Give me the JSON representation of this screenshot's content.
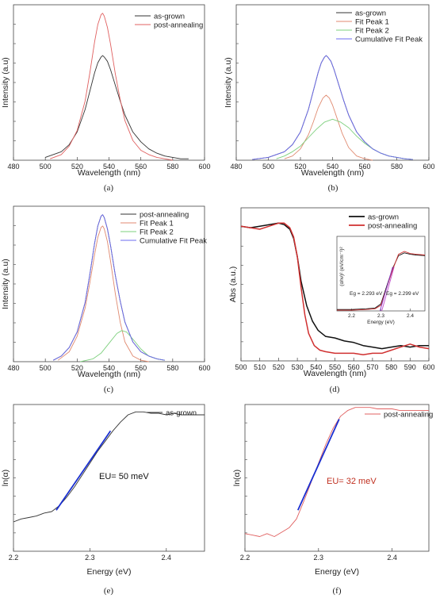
{
  "colors": {
    "as_grown": "#333333",
    "post_annealing": "#e06060",
    "fit1": "#e08a70",
    "fit2": "#7ed07e",
    "cumulative": "#6c6cf0",
    "abs_as_grown": "#111111",
    "abs_post": "#d03030",
    "urbach_fit": "#1a2fd0",
    "annot_red": "#c03020"
  },
  "chart_data": [
    {
      "id": "a",
      "type": "line",
      "panel_label": "(a)",
      "xlabel": "Wavelength (nm)",
      "ylabel": "Intensity (a.u)",
      "xlim": [
        480,
        600
      ],
      "ylim": [
        0,
        1.1
      ],
      "xticks": [
        480,
        500,
        520,
        540,
        560,
        580,
        600
      ],
      "tick_labels": [
        "480",
        "500",
        "520",
        "540",
        "560",
        "580",
        "600"
      ],
      "legend": "top-right",
      "series": [
        {
          "name": "as-grown",
          "color": "as_grown",
          "x": [
            500,
            510,
            515,
            520,
            525,
            528,
            531,
            533,
            535,
            536,
            537,
            539,
            541,
            544,
            547,
            550,
            555,
            560,
            565,
            570,
            575,
            580,
            585,
            590
          ],
          "y": [
            0.02,
            0.06,
            0.11,
            0.2,
            0.36,
            0.49,
            0.62,
            0.69,
            0.73,
            0.74,
            0.73,
            0.7,
            0.64,
            0.53,
            0.42,
            0.32,
            0.2,
            0.13,
            0.08,
            0.05,
            0.03,
            0.02,
            0.01,
            0.01
          ]
        },
        {
          "name": "post-annealing",
          "color": "post_annealing",
          "x": [
            503,
            510,
            515,
            520,
            525,
            528,
            531,
            533,
            535,
            536,
            537,
            539,
            541,
            544,
            547,
            550,
            555,
            560,
            565,
            570,
            575,
            580
          ],
          "y": [
            0.01,
            0.04,
            0.1,
            0.21,
            0.42,
            0.62,
            0.84,
            0.96,
            1.03,
            1.04,
            1.02,
            0.94,
            0.82,
            0.61,
            0.43,
            0.28,
            0.14,
            0.07,
            0.04,
            0.02,
            0.01,
            0.0
          ]
        }
      ]
    },
    {
      "id": "b",
      "type": "line",
      "panel_label": "(b)",
      "xlabel": "Wavelength (nm)",
      "ylabel": "Intensity (a.u)",
      "xlim": [
        480,
        600
      ],
      "ylim": [
        0,
        1.1
      ],
      "xticks": [
        480,
        500,
        520,
        540,
        560,
        580,
        600
      ],
      "tick_labels": [
        "480",
        "500",
        "520",
        "540",
        "560",
        "580",
        "600"
      ],
      "legend": "top-right",
      "series": [
        {
          "name": "as-grown",
          "color": "as_grown",
          "x": [
            490,
            500,
            510,
            515,
            520,
            525,
            528,
            531,
            533,
            535,
            536,
            537,
            539,
            541,
            544,
            547,
            550,
            555,
            560,
            565,
            570,
            575,
            580,
            585,
            590
          ],
          "y": [
            0.005,
            0.02,
            0.06,
            0.11,
            0.2,
            0.36,
            0.49,
            0.62,
            0.69,
            0.73,
            0.74,
            0.73,
            0.7,
            0.64,
            0.53,
            0.42,
            0.32,
            0.2,
            0.13,
            0.08,
            0.05,
            0.03,
            0.02,
            0.01,
            0.005
          ]
        },
        {
          "name": "Fit Peak 1",
          "color": "fit1",
          "x": [
            510,
            515,
            520,
            525,
            528,
            531,
            534,
            536,
            538,
            540,
            543,
            546,
            550,
            555,
            560,
            565
          ],
          "y": [
            0.01,
            0.03,
            0.08,
            0.18,
            0.27,
            0.37,
            0.44,
            0.46,
            0.44,
            0.39,
            0.29,
            0.19,
            0.09,
            0.03,
            0.01,
            0.0
          ]
        },
        {
          "name": "Fit Peak 2",
          "color": "fit2",
          "x": [
            505,
            510,
            515,
            520,
            525,
            530,
            535,
            540,
            545,
            550,
            555,
            560,
            565,
            570,
            575,
            580,
            585,
            590
          ],
          "y": [
            0.01,
            0.03,
            0.06,
            0.1,
            0.16,
            0.22,
            0.27,
            0.29,
            0.27,
            0.23,
            0.17,
            0.12,
            0.08,
            0.05,
            0.03,
            0.02,
            0.01,
            0.005
          ]
        },
        {
          "name": "Cumulative Fit Peak",
          "color": "cumulative",
          "x": [
            490,
            500,
            510,
            515,
            520,
            525,
            528,
            531,
            533,
            535,
            536,
            537,
            539,
            541,
            544,
            547,
            550,
            555,
            560,
            565,
            570,
            575,
            580,
            585,
            590
          ],
          "y": [
            0.005,
            0.02,
            0.06,
            0.11,
            0.2,
            0.36,
            0.49,
            0.62,
            0.69,
            0.73,
            0.74,
            0.73,
            0.7,
            0.64,
            0.53,
            0.42,
            0.32,
            0.2,
            0.13,
            0.08,
            0.05,
            0.03,
            0.02,
            0.01,
            0.005
          ]
        }
      ]
    },
    {
      "id": "c",
      "type": "line",
      "panel_label": "(c)",
      "xlabel": "Wavelength (nm)",
      "ylabel": "Intensity (a.u)",
      "xlim": [
        480,
        600
      ],
      "ylim": [
        0,
        1.1
      ],
      "xticks": [
        480,
        500,
        520,
        540,
        560,
        580,
        600
      ],
      "tick_labels": [
        "480",
        "500",
        "520",
        "540",
        "560",
        "580",
        "600"
      ],
      "legend": "top-right",
      "series": [
        {
          "name": "post-annealing",
          "color": "as_grown",
          "x": [
            505,
            510,
            515,
            520,
            525,
            528,
            531,
            533,
            535,
            536,
            537,
            539,
            541,
            544,
            547,
            550,
            555,
            560,
            565,
            570,
            575
          ],
          "y": [
            0.01,
            0.04,
            0.1,
            0.21,
            0.42,
            0.62,
            0.84,
            0.96,
            1.03,
            1.04,
            1.02,
            0.94,
            0.82,
            0.61,
            0.43,
            0.28,
            0.14,
            0.07,
            0.04,
            0.02,
            0.01
          ]
        },
        {
          "name": "Fit Peak 1",
          "color": "fit1",
          "x": [
            508,
            515,
            520,
            525,
            528,
            531,
            533,
            535,
            536,
            537,
            539,
            541,
            544,
            547,
            550,
            555,
            560,
            565
          ],
          "y": [
            0.01,
            0.07,
            0.18,
            0.38,
            0.56,
            0.76,
            0.88,
            0.95,
            0.96,
            0.94,
            0.85,
            0.71,
            0.48,
            0.28,
            0.14,
            0.04,
            0.01,
            0.0
          ]
        },
        {
          "name": "Fit Peak 2",
          "color": "fit2",
          "x": [
            522,
            530,
            535,
            540,
            545,
            548,
            551,
            555,
            560,
            565,
            570,
            575
          ],
          "y": [
            0.0,
            0.02,
            0.06,
            0.13,
            0.2,
            0.22,
            0.21,
            0.16,
            0.09,
            0.04,
            0.02,
            0.01
          ]
        },
        {
          "name": "Cumulative Fit Peak",
          "color": "cumulative",
          "x": [
            505,
            510,
            515,
            520,
            525,
            528,
            531,
            533,
            535,
            536,
            537,
            539,
            541,
            544,
            547,
            550,
            555,
            560,
            565,
            570,
            575
          ],
          "y": [
            0.01,
            0.04,
            0.1,
            0.21,
            0.42,
            0.62,
            0.84,
            0.96,
            1.03,
            1.04,
            1.02,
            0.94,
            0.82,
            0.61,
            0.43,
            0.28,
            0.14,
            0.07,
            0.04,
            0.02,
            0.01
          ]
        }
      ]
    },
    {
      "id": "d",
      "type": "line",
      "panel_label": "(d)",
      "xlabel": "Wavelength (nm)",
      "ylabel": "Abs (a.u.)",
      "xlim": [
        500,
        600
      ],
      "ylim": [
        0,
        1
      ],
      "xticks": [
        500,
        510,
        520,
        530,
        540,
        550,
        560,
        570,
        580,
        590,
        600
      ],
      "tick_labels": [
        "500",
        "510",
        "520",
        "530",
        "540",
        "550",
        "560",
        "570",
        "580",
        "590",
        "600"
      ],
      "legend": "top-right",
      "series": [
        {
          "name": "as-grown",
          "color": "abs_as_grown",
          "x": [
            500,
            505,
            510,
            515,
            520,
            523,
            526,
            528,
            530,
            532,
            535,
            538,
            541,
            545,
            550,
            555,
            560,
            565,
            570,
            575,
            580,
            585,
            590,
            595,
            600
          ],
          "y": [
            0.88,
            0.87,
            0.88,
            0.89,
            0.9,
            0.89,
            0.86,
            0.8,
            0.68,
            0.52,
            0.36,
            0.26,
            0.2,
            0.16,
            0.15,
            0.13,
            0.12,
            0.1,
            0.09,
            0.08,
            0.09,
            0.1,
            0.09,
            0.1,
            0.1
          ]
        },
        {
          "name": "post-annealing",
          "color": "abs_post",
          "x": [
            500,
            505,
            510,
            515,
            520,
            523,
            526,
            528,
            530,
            532,
            534,
            536,
            539,
            542,
            545,
            550,
            555,
            560,
            565,
            570,
            575,
            580,
            585,
            590,
            595,
            600
          ],
          "y": [
            0.88,
            0.87,
            0.86,
            0.88,
            0.9,
            0.9,
            0.87,
            0.81,
            0.68,
            0.48,
            0.3,
            0.18,
            0.1,
            0.07,
            0.06,
            0.05,
            0.05,
            0.05,
            0.04,
            0.05,
            0.05,
            0.07,
            0.09,
            0.11,
            0.09,
            0.08
          ]
        }
      ],
      "inset": {
        "xlabel": "Energy (eV)",
        "ylabel": "(αhν)² (eV/cm⁻¹)²",
        "xlim": [
          2.15,
          2.45
        ],
        "xticks": [
          2.2,
          2.3,
          2.4
        ],
        "tick_labels": [
          "2.2",
          "2.3",
          "2.4"
        ],
        "annotation_as_grown": "Eg = 2.293 eV",
        "annotation_post": "Eg = 2.299 eV",
        "series": [
          {
            "name": "as-grown",
            "color": "abs_as_grown",
            "x": [
              2.15,
              2.2,
              2.25,
              2.28,
              2.3,
              2.32,
              2.34,
              2.36,
              2.38,
              2.4,
              2.42,
              2.45
            ],
            "y": [
              0.02,
              0.02,
              0.03,
              0.04,
              0.1,
              0.35,
              0.6,
              0.78,
              0.82,
              0.8,
              0.79,
              0.78
            ]
          },
          {
            "name": "post-annealing",
            "color": "abs_post",
            "x": [
              2.15,
              2.2,
              2.25,
              2.28,
              2.3,
              2.32,
              2.34,
              2.36,
              2.38,
              2.4,
              2.42,
              2.45
            ],
            "y": [
              0.01,
              0.01,
              0.02,
              0.03,
              0.08,
              0.33,
              0.58,
              0.8,
              0.84,
              0.81,
              0.8,
              0.79
            ]
          }
        ]
      }
    },
    {
      "id": "e",
      "type": "line",
      "panel_label": "(e)",
      "xlabel": "Energy (eV)",
      "ylabel": "ln(α)",
      "xlim": [
        2.2,
        2.45
      ],
      "ylim": [
        0,
        1
      ],
      "xticks": [
        2.2,
        2.3,
        2.4
      ],
      "tick_labels": [
        "2.2",
        "2.3",
        "2.4"
      ],
      "legend": "top-right",
      "annotation": "EU= 50 meV",
      "series": [
        {
          "name": "as-grown",
          "color": "as_grown",
          "x": [
            2.2,
            2.21,
            2.22,
            2.23,
            2.24,
            2.25,
            2.26,
            2.27,
            2.28,
            2.29,
            2.3,
            2.31,
            2.32,
            2.33,
            2.34,
            2.35,
            2.36,
            2.37,
            2.38,
            2.39,
            2.4,
            2.41,
            2.42,
            2.43,
            2.44,
            2.45
          ],
          "y": [
            0.2,
            0.22,
            0.23,
            0.24,
            0.26,
            0.27,
            0.31,
            0.37,
            0.44,
            0.52,
            0.6,
            0.68,
            0.75,
            0.82,
            0.88,
            0.93,
            0.95,
            0.95,
            0.94,
            0.94,
            0.93,
            0.94,
            0.93,
            0.93,
            0.93,
            0.93
          ]
        },
        {
          "name": "fit",
          "color": "urbach_fit",
          "x": [
            2.256,
            2.327
          ],
          "y": [
            0.28,
            0.82
          ]
        }
      ]
    },
    {
      "id": "f",
      "type": "line",
      "panel_label": "(f)",
      "xlabel": "Energy (eV)",
      "ylabel": "ln(α)",
      "xlim": [
        2.2,
        2.45
      ],
      "ylim": [
        0,
        1
      ],
      "xticks": [
        2.2,
        2.3,
        2.4
      ],
      "tick_labels": [
        "2.2",
        "2.3",
        "2.4"
      ],
      "legend": "top-right",
      "annotation": "EU= 32 meV",
      "series": [
        {
          "name": "post-annealing",
          "color": "post_annealing",
          "x": [
            2.2,
            2.21,
            2.22,
            2.23,
            2.24,
            2.25,
            2.26,
            2.27,
            2.28,
            2.29,
            2.3,
            2.31,
            2.32,
            2.33,
            2.34,
            2.35,
            2.36,
            2.37,
            2.38,
            2.39,
            2.4,
            2.41,
            2.42,
            2.43,
            2.44,
            2.45
          ],
          "y": [
            0.12,
            0.11,
            0.1,
            0.12,
            0.1,
            0.13,
            0.16,
            0.22,
            0.34,
            0.47,
            0.6,
            0.73,
            0.84,
            0.92,
            0.96,
            0.98,
            0.98,
            0.98,
            0.97,
            0.97,
            0.97,
            0.96,
            0.96,
            0.96,
            0.96,
            0.96
          ]
        },
        {
          "name": "fit",
          "color": "urbach_fit",
          "x": [
            2.272,
            2.328
          ],
          "y": [
            0.28,
            0.9
          ]
        }
      ]
    }
  ]
}
